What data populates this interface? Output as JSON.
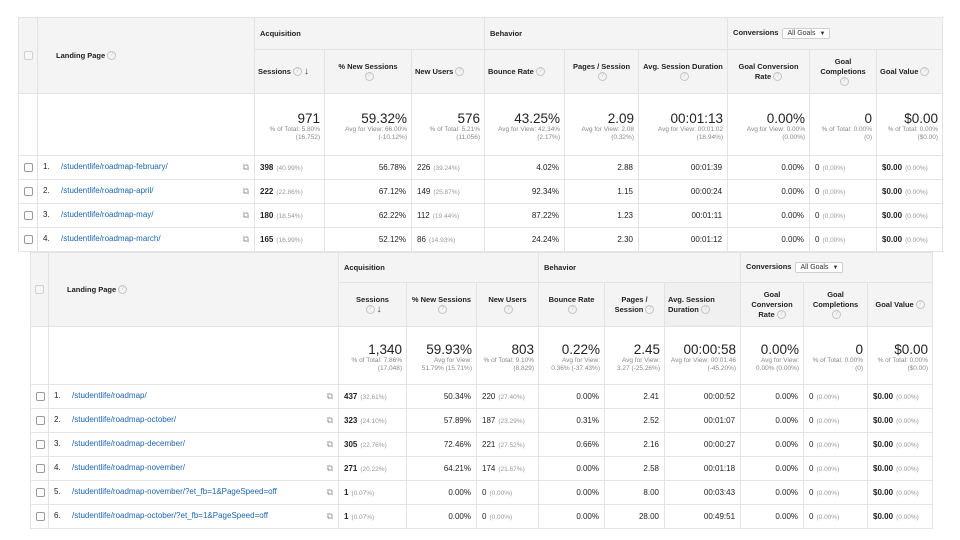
{
  "common": {
    "landing_page_label": "Landing Page",
    "acquisition_label": "Acquisition",
    "behavior_label": "Behavior",
    "conversions_label": "Conversions",
    "goals_dropdown": "All Goals",
    "sessions_label": "Sessions",
    "new_sessions_label": "% New Sessions",
    "new_users_label": "New Users",
    "bounce_rate_label": "Bounce Rate",
    "pages_session_label": "Pages / Session",
    "avg_duration_label": "Avg. Session Duration",
    "goal_conv_rate_label": "Goal Conversion Rate",
    "goal_completions_label": "Goal Completions",
    "goal_value_label": "Goal Value",
    "help_glyph": "?",
    "sort_arrow": "↓",
    "popout_glyph": "⧉",
    "caret_glyph": "▼"
  },
  "table_a": {
    "totals": {
      "sessions": "971",
      "sessions_sub": "% of Total: 5.80% (16,752)",
      "new_sessions": "59.32%",
      "new_sessions_sub": "Avg for View: 66.00% (-10.12%)",
      "new_users": "576",
      "new_users_sub": "% of Total: 5.21% (11,056)",
      "bounce": "43.25%",
      "bounce_sub": "Avg for View: 42.34% (2.17%)",
      "pages": "2.09",
      "pages_sub": "Avg for View: 2.08 (0.32%)",
      "duration": "00:01:13",
      "duration_sub": "Avg for View: 00:01:02 (18.94%)",
      "conv": "0.00%",
      "conv_sub": "Avg for View: 0.00% (0.00%)",
      "completions": "0",
      "completions_sub": "% of Total: 0.00% (0)",
      "value": "$0.00",
      "value_sub": "% of Total: 0.00% ($0.00)"
    },
    "rows": [
      {
        "idx": "1.",
        "page": "/studentlife/roadmap-february/",
        "sessions": "398",
        "sessions_pct": "(40.99%)",
        "new_sessions": "56.78%",
        "new_users": "226",
        "new_users_pct": "(39.24%)",
        "bounce": "4.02%",
        "pages": "2.88",
        "duration": "00:01:39",
        "conv": "0.00%",
        "completions": "0",
        "completions_pct": "(0.00%)",
        "value": "$0.00",
        "value_pct": "(0.00%)"
      },
      {
        "idx": "2.",
        "page": "/studentlife/roadmap-april/",
        "sessions": "222",
        "sessions_pct": "(22.86%)",
        "new_sessions": "67.12%",
        "new_users": "149",
        "new_users_pct": "(25.87%)",
        "bounce": "92.34%",
        "pages": "1.15",
        "duration": "00:00:24",
        "conv": "0.00%",
        "completions": "0",
        "completions_pct": "(0.00%)",
        "value": "$0.00",
        "value_pct": "(0.00%)"
      },
      {
        "idx": "3.",
        "page": "/studentlife/roadmap-may/",
        "sessions": "180",
        "sessions_pct": "(18.54%)",
        "new_sessions": "62.22%",
        "new_users": "112",
        "new_users_pct": "(19.44%)",
        "bounce": "87.22%",
        "pages": "1.23",
        "duration": "00:01:11",
        "conv": "0.00%",
        "completions": "0",
        "completions_pct": "(0.00%)",
        "value": "$0.00",
        "value_pct": "(0.00%)"
      },
      {
        "idx": "4.",
        "page": "/studentlife/roadmap-march/",
        "sessions": "165",
        "sessions_pct": "(16.99%)",
        "new_sessions": "52.12%",
        "new_users": "86",
        "new_users_pct": "(14.93%)",
        "bounce": "24.24%",
        "pages": "2.30",
        "duration": "00:01:12",
        "conv": "0.00%",
        "completions": "0",
        "completions_pct": "(0.00%)",
        "value": "$0.00",
        "value_pct": "(0.00%)"
      }
    ]
  },
  "table_b": {
    "totals": {
      "sessions": "1,340",
      "sessions_sub": "% of Total: 7.86% (17,048)",
      "new_sessions": "59.93%",
      "new_sessions_sub": "Avg for View: 51.79% (15.71%)",
      "new_users": "803",
      "new_users_sub": "% of Total: 9.10% (8,829)",
      "bounce": "0.22%",
      "bounce_sub": "Avg for View: 0.36% (-37.43%)",
      "pages": "2.45",
      "pages_sub": "Avg for View: 3.27 (-25.26%)",
      "duration": "00:00:58",
      "duration_sub": "Avg for View: 00:01:46 (-45.20%)",
      "conv": "0.00%",
      "conv_sub": "Avg for View: 0.00% (0.00%)",
      "completions": "0",
      "completions_sub": "% of Total: 0.00% (0)",
      "value": "$0.00",
      "value_sub": "% of Total: 0.00% ($0.00)"
    },
    "rows": [
      {
        "idx": "1.",
        "page": "/studentlife/roadmap/",
        "sessions": "437",
        "sessions_pct": "(32.61%)",
        "new_sessions": "50.34%",
        "new_users": "220",
        "new_users_pct": "(27.40%)",
        "bounce": "0.00%",
        "pages": "2.41",
        "duration": "00:00:52",
        "conv": "0.00%",
        "completions": "0",
        "completions_pct": "(0.00%)",
        "value": "$0.00",
        "value_pct": "(0.00%)"
      },
      {
        "idx": "2.",
        "page": "/studentlife/roadmap-october/",
        "sessions": "323",
        "sessions_pct": "(24.10%)",
        "new_sessions": "57.89%",
        "new_users": "187",
        "new_users_pct": "(23.29%)",
        "bounce": "0.31%",
        "pages": "2.52",
        "duration": "00:01:07",
        "conv": "0.00%",
        "completions": "0",
        "completions_pct": "(0.00%)",
        "value": "$0.00",
        "value_pct": "(0.00%)"
      },
      {
        "idx": "3.",
        "page": "/studentlife/roadmap-december/",
        "sessions": "305",
        "sessions_pct": "(22.76%)",
        "new_sessions": "72.46%",
        "new_users": "221",
        "new_users_pct": "(27.52%)",
        "bounce": "0.66%",
        "pages": "2.16",
        "duration": "00:00:27",
        "conv": "0.00%",
        "completions": "0",
        "completions_pct": "(0.00%)",
        "value": "$0.00",
        "value_pct": "(0.00%)"
      },
      {
        "idx": "4.",
        "page": "/studentlife/roadmap-november/",
        "sessions": "271",
        "sessions_pct": "(20.22%)",
        "new_sessions": "64.21%",
        "new_users": "174",
        "new_users_pct": "(21.67%)",
        "bounce": "0.00%",
        "pages": "2.58",
        "duration": "00:01:18",
        "conv": "0.00%",
        "completions": "0",
        "completions_pct": "(0.00%)",
        "value": "$0.00",
        "value_pct": "(0.00%)"
      },
      {
        "idx": "5.",
        "page": "/studentlife/roadmap-november/?et_fb=1&PageSpeed=off",
        "sessions": "1",
        "sessions_pct": "(0.07%)",
        "new_sessions": "0.00%",
        "new_users": "0",
        "new_users_pct": "(0.00%)",
        "bounce": "0.00%",
        "pages": "8.00",
        "duration": "00:03:43",
        "conv": "0.00%",
        "completions": "0",
        "completions_pct": "(0.00%)",
        "value": "$0.00",
        "value_pct": "(0.00%)"
      },
      {
        "idx": "6.",
        "page": "/studentlife/roadmap-october/?et_fb=1&PageSpeed=off",
        "sessions": "1",
        "sessions_pct": "(0.07%)",
        "new_sessions": "0.00%",
        "new_users": "0",
        "new_users_pct": "(0.00%)",
        "bounce": "0.00%",
        "pages": "28.00",
        "duration": "00:49:51",
        "conv": "0.00%",
        "completions": "0",
        "completions_pct": "(0.00%)",
        "value": "$0.00",
        "value_pct": "(0.00%)"
      }
    ]
  },
  "colors": {
    "link": "#1a66b4",
    "muted": "#999999",
    "header_bg": "#f4f4f4"
  }
}
